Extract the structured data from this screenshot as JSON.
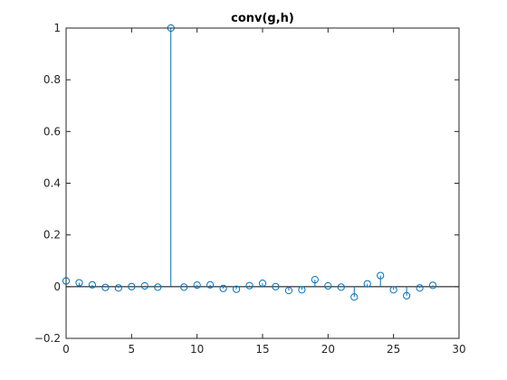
{
  "chart_data": {
    "type": "stem",
    "title": "conv(g,h)",
    "xlabel": "",
    "ylabel": "",
    "xlim": [
      0,
      30
    ],
    "ylim": [
      -0.2,
      1
    ],
    "x_ticks": [
      0,
      5,
      10,
      15,
      20,
      25,
      30
    ],
    "y_ticks": [
      -0.2,
      0,
      0.2,
      0.4,
      0.6,
      0.8,
      1
    ],
    "x_tick_labels": [
      "0",
      "5",
      "10",
      "15",
      "20",
      "25",
      "30"
    ],
    "y_tick_labels": [
      "−0.2",
      "0",
      "0.2",
      "0.4",
      "0.6",
      "0.8",
      "1"
    ],
    "grid": false,
    "color": "#0072BD",
    "x": [
      0,
      1,
      2,
      3,
      4,
      5,
      6,
      7,
      8,
      9,
      10,
      11,
      12,
      13,
      14,
      15,
      16,
      17,
      18,
      19,
      20,
      21,
      22,
      23,
      24,
      25,
      26,
      27,
      28
    ],
    "y": [
      0.022,
      0.015,
      0.007,
      -0.003,
      -0.005,
      0.0,
      0.003,
      -0.002,
      1.0,
      -0.002,
      0.006,
      0.007,
      -0.007,
      -0.01,
      0.004,
      0.013,
      0.0,
      -0.015,
      -0.012,
      0.027,
      0.003,
      -0.002,
      -0.04,
      0.011,
      0.043,
      -0.012,
      -0.035,
      -0.005,
      0.005
    ]
  }
}
